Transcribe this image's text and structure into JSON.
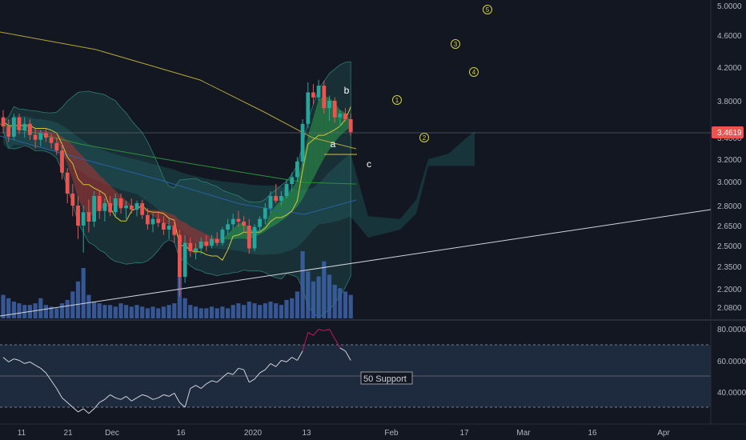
{
  "chart_data": [
    {
      "type": "candlestick",
      "title": "",
      "y_ticks": [
        "5.0000",
        "4.6000",
        "4.2000",
        "3.8000",
        "3.4000",
        "3.2000",
        "3.0000",
        "2.8000",
        "2.6500",
        "2.5000",
        "2.3500",
        "2.2000",
        "2.0800"
      ],
      "x_ticks": [
        "11",
        "21",
        "Dec",
        "16",
        "2020",
        "13",
        "Feb",
        "17",
        "Mar",
        "16",
        "Apr"
      ],
      "last_price": "3.4619",
      "up_color": "#26a69a",
      "down_color": "#ef5350",
      "ohlc": [
        [
          3.62,
          3.7,
          3.45,
          3.52
        ],
        [
          3.52,
          3.6,
          3.36,
          3.41
        ],
        [
          3.41,
          3.66,
          3.38,
          3.62
        ],
        [
          3.62,
          3.66,
          3.44,
          3.48
        ],
        [
          3.48,
          3.62,
          3.4,
          3.55
        ],
        [
          3.55,
          3.6,
          3.38,
          3.43
        ],
        [
          3.43,
          3.5,
          3.3,
          3.38
        ],
        [
          3.38,
          3.48,
          3.32,
          3.45
        ],
        [
          3.45,
          3.5,
          3.36,
          3.4
        ],
        [
          3.4,
          3.44,
          3.3,
          3.35
        ],
        [
          3.35,
          3.4,
          3.24,
          3.28
        ],
        [
          3.28,
          3.34,
          3.02,
          3.08
        ],
        [
          3.08,
          3.12,
          2.82,
          2.9
        ],
        [
          2.9,
          2.98,
          2.72,
          2.8
        ],
        [
          2.8,
          2.88,
          2.55,
          2.65
        ],
        [
          2.65,
          2.8,
          2.45,
          2.75
        ],
        [
          2.75,
          2.85,
          2.6,
          2.68
        ],
        [
          2.68,
          2.92,
          2.64,
          2.88
        ],
        [
          2.88,
          2.92,
          2.7,
          2.76
        ],
        [
          2.76,
          2.86,
          2.68,
          2.82
        ],
        [
          2.82,
          2.88,
          2.72,
          2.75
        ],
        [
          2.75,
          2.9,
          2.72,
          2.86
        ],
        [
          2.86,
          2.9,
          2.74,
          2.78
        ],
        [
          2.78,
          2.84,
          2.7,
          2.8
        ],
        [
          2.8,
          2.86,
          2.74,
          2.77
        ],
        [
          2.77,
          2.84,
          2.72,
          2.82
        ],
        [
          2.82,
          2.85,
          2.7,
          2.73
        ],
        [
          2.73,
          2.78,
          2.62,
          2.66
        ],
        [
          2.66,
          2.74,
          2.6,
          2.7
        ],
        [
          2.7,
          2.76,
          2.64,
          2.67
        ],
        [
          2.67,
          2.72,
          2.58,
          2.62
        ],
        [
          2.62,
          2.7,
          2.55,
          2.65
        ],
        [
          2.65,
          2.7,
          2.52,
          2.58
        ],
        [
          2.58,
          2.62,
          2.15,
          2.28
        ],
        [
          2.28,
          2.58,
          2.24,
          2.52
        ],
        [
          2.52,
          2.56,
          2.42,
          2.46
        ],
        [
          2.46,
          2.52,
          2.4,
          2.48
        ],
        [
          2.48,
          2.56,
          2.44,
          2.53
        ],
        [
          2.53,
          2.58,
          2.46,
          2.5
        ],
        [
          2.5,
          2.58,
          2.48,
          2.55
        ],
        [
          2.55,
          2.6,
          2.5,
          2.52
        ],
        [
          2.52,
          2.64,
          2.5,
          2.62
        ],
        [
          2.62,
          2.7,
          2.58,
          2.66
        ],
        [
          2.66,
          2.74,
          2.62,
          2.7
        ],
        [
          2.7,
          2.76,
          2.64,
          2.68
        ],
        [
          2.68,
          2.72,
          2.6,
          2.65
        ],
        [
          2.65,
          2.7,
          2.44,
          2.48
        ],
        [
          2.48,
          2.66,
          2.46,
          2.64
        ],
        [
          2.64,
          2.72,
          2.6,
          2.7
        ],
        [
          2.7,
          2.82,
          2.66,
          2.78
        ],
        [
          2.78,
          2.92,
          2.74,
          2.88
        ],
        [
          2.88,
          2.98,
          2.82,
          2.84
        ],
        [
          2.84,
          2.92,
          2.8,
          2.88
        ],
        [
          2.88,
          3.02,
          2.86,
          2.98
        ],
        [
          2.98,
          3.08,
          2.92,
          3.04
        ],
        [
          3.04,
          3.22,
          3.0,
          3.18
        ],
        [
          3.18,
          3.6,
          3.14,
          3.55
        ],
        [
          3.55,
          4.02,
          3.5,
          3.9
        ],
        [
          3.9,
          4.0,
          3.76,
          3.84
        ],
        [
          3.84,
          4.05,
          3.8,
          3.98
        ],
        [
          3.98,
          4.04,
          3.66,
          3.72
        ],
        [
          3.72,
          3.86,
          3.58,
          3.8
        ],
        [
          3.8,
          3.84,
          3.56,
          3.62
        ],
        [
          3.62,
          3.7,
          3.52,
          3.66
        ],
        [
          3.66,
          3.72,
          3.58,
          3.6
        ],
        [
          3.6,
          3.66,
          3.42,
          3.46
        ]
      ],
      "volume": [
        14,
        12,
        10,
        9,
        8,
        8,
        9,
        12,
        8,
        7,
        6,
        9,
        11,
        16,
        22,
        30,
        14,
        10,
        9,
        8,
        8,
        7,
        9,
        8,
        7,
        8,
        7,
        6,
        7,
        6,
        7,
        8,
        9,
        26,
        12,
        8,
        7,
        6,
        6,
        7,
        6,
        7,
        6,
        8,
        9,
        8,
        10,
        9,
        8,
        9,
        10,
        9,
        8,
        11,
        12,
        16,
        40,
        28,
        22,
        25,
        34,
        26,
        20,
        18,
        16,
        14
      ],
      "elliott_wave": {
        "projection_points": [
          {
            "label": "1",
            "time": 53,
            "price": 3.75
          },
          {
            "label": "2",
            "time": 63,
            "price": 3.36
          },
          {
            "label": "3",
            "time": 78,
            "price": 4.5
          },
          {
            "label": "4",
            "time": 83,
            "price": 4.15
          },
          {
            "label": "5",
            "time": 88,
            "price": 4.95
          }
        ],
        "corrective_labels": [
          "a",
          "b",
          "c"
        ]
      }
    },
    {
      "type": "line",
      "y_ticks": [
        "80.0000",
        "60.0000",
        "40.0000"
      ],
      "bands": [
        70,
        50,
        30
      ],
      "annotation": "50 Support",
      "values": [
        62,
        59,
        61,
        60,
        58,
        59,
        57,
        55,
        52,
        47,
        42,
        36,
        33,
        30,
        27,
        29,
        26,
        29,
        33,
        35,
        38,
        36,
        35,
        37,
        34,
        36,
        38,
        37,
        35,
        36,
        38,
        37,
        39,
        33,
        30,
        42,
        44,
        42,
        45,
        47,
        46,
        49,
        52,
        51,
        55,
        54,
        46,
        48,
        52,
        54,
        58,
        56,
        60,
        59,
        62,
        60,
        66,
        78,
        76,
        80,
        79,
        80,
        74,
        68,
        66,
        60
      ]
    }
  ]
}
